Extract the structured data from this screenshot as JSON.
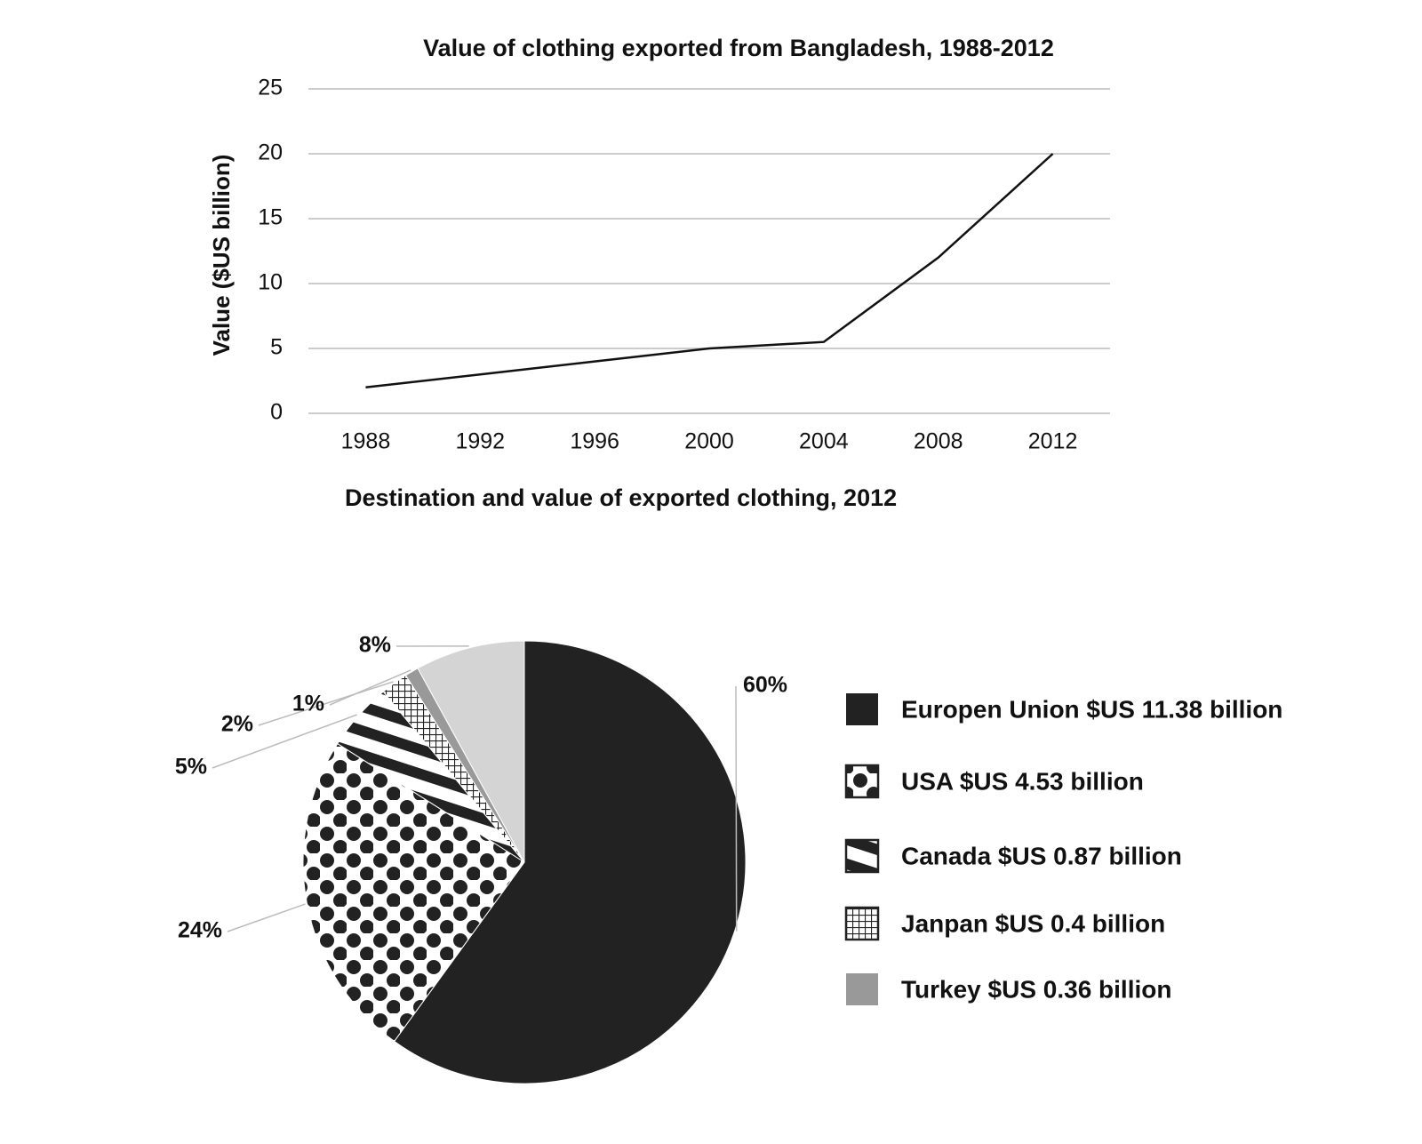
{
  "chart_data": [
    {
      "type": "line",
      "title": "Value of clothing exported from Bangladesh, 1988-2012",
      "ylabel": "Value ($US billion)",
      "categories": [
        "1988",
        "1992",
        "1996",
        "2000",
        "2004",
        "2008",
        "2012"
      ],
      "values": [
        2,
        3,
        4,
        5,
        5.5,
        12,
        20
      ],
      "color": "#111111",
      "ylim": [
        0,
        25
      ],
      "yticks": [
        0,
        5,
        10,
        15,
        20,
        25
      ],
      "grid": true
    },
    {
      "type": "pie",
      "title": "Destination and value of exported clothing, 2012",
      "categories": [
        "Europen Union $US 11.38 billion",
        "USA $US 4.53 billion",
        "Canada $US 0.87 billion",
        "Janpan $US 0.4 billion",
        "Turkey $US 0.36 billion",
        null
      ],
      "values": [
        60,
        24,
        5,
        2,
        1,
        8
      ],
      "value_labels": [
        "60%",
        "24%",
        "5%",
        "2%",
        "1%",
        "8%"
      ],
      "colors": [
        "#222222",
        "#222222",
        "#222222",
        "#222222",
        "#999999",
        "#d4d4d4"
      ],
      "patterns": [
        "solid",
        "dots",
        "stripes",
        "grid",
        "solid",
        "solid"
      ],
      "legend": "right"
    }
  ]
}
